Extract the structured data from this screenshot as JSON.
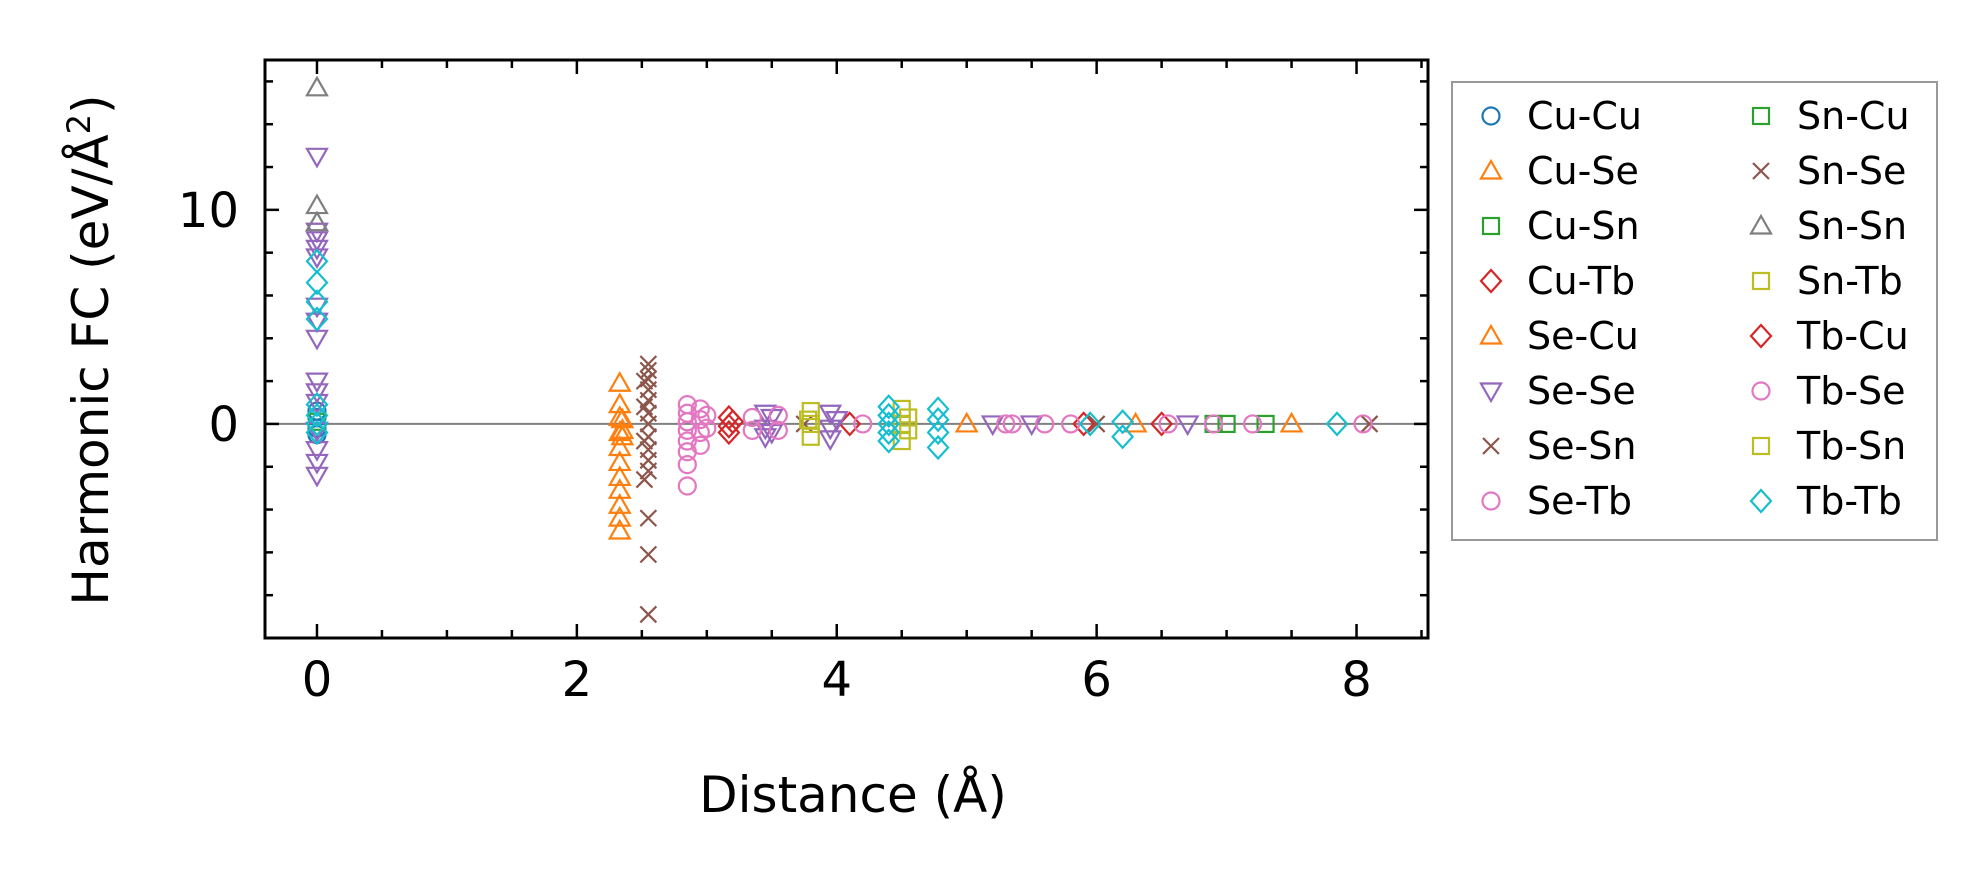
{
  "chart_data": {
    "type": "scatter",
    "xlabel": "Distance (Å)",
    "ylabel_main": "Harmonic FC (eV/Å",
    "ylabel_sup": "2",
    "ylabel_close": ")",
    "xlim": [
      -0.4,
      8.55
    ],
    "ylim": [
      -10.0,
      17.0
    ],
    "xticks": [
      0,
      2,
      4,
      6,
      8
    ],
    "xtick_labels": [
      "0",
      "2",
      "4",
      "6",
      "8"
    ],
    "yticks": [
      0,
      10
    ],
    "ytick_labels": [
      "0",
      "10"
    ],
    "x_minor_step": 0.5,
    "y_minor_step": 2,
    "zero_line": true,
    "grid": false,
    "legend_position": "outside-right",
    "legend_columns": 2,
    "series": [
      {
        "name": "Cu-Cu",
        "marker": "circle",
        "color": "#1f77b4",
        "points": [
          [
            0,
            0.3
          ],
          [
            0,
            -0.2
          ],
          [
            0,
            0.6
          ],
          [
            0,
            -0.5
          ]
        ]
      },
      {
        "name": "Cu-Se",
        "marker": "triangle-up",
        "color": "#ff7f0e",
        "points": [
          [
            2.33,
            1.9
          ],
          [
            2.33,
            0.9
          ],
          [
            2.33,
            0.3
          ],
          [
            2.33,
            -0.4
          ],
          [
            2.33,
            -1.1
          ],
          [
            2.33,
            -1.8
          ],
          [
            2.33,
            -2.5
          ],
          [
            2.33,
            -3.1
          ],
          [
            2.33,
            -3.8
          ],
          [
            2.33,
            -4.4
          ],
          [
            2.33,
            -5.0
          ],
          [
            5.0,
            0.0
          ],
          [
            6.3,
            0.0
          ],
          [
            7.5,
            0.0
          ]
        ]
      },
      {
        "name": "Cu-Sn",
        "marker": "square",
        "color": "#2ca02c",
        "points": [
          [
            0,
            0.1
          ],
          [
            6.9,
            0.0
          ],
          [
            7.3,
            0.0
          ]
        ]
      },
      {
        "name": "Cu-Tb",
        "marker": "diamond",
        "color": "#d62728",
        "points": [
          [
            3.17,
            0.3
          ],
          [
            3.17,
            -0.1
          ],
          [
            3.17,
            -0.4
          ],
          [
            4.1,
            0.0
          ],
          [
            5.9,
            0.0
          ]
        ]
      },
      {
        "name": "Se-Cu",
        "marker": "triangle-up",
        "color": "#ff7f0e",
        "points": [
          [
            2.35,
            0.2
          ],
          [
            2.35,
            -0.3
          ],
          [
            2.35,
            -0.6
          ]
        ]
      },
      {
        "name": "Se-Se",
        "marker": "triangle-down",
        "color": "#9467bd",
        "points": [
          [
            0,
            12.5
          ],
          [
            0,
            9.0
          ],
          [
            0,
            8.6
          ],
          [
            0,
            8.2
          ],
          [
            0,
            7.8
          ],
          [
            0,
            5.5
          ],
          [
            0,
            4.8
          ],
          [
            0,
            4.0
          ],
          [
            0,
            2.0
          ],
          [
            0,
            1.5
          ],
          [
            0,
            1.0
          ],
          [
            0,
            -0.3
          ],
          [
            0,
            -1.2
          ],
          [
            0,
            -1.8
          ],
          [
            0,
            -2.4
          ],
          [
            3.45,
            0.5
          ],
          [
            3.45,
            -0.2
          ],
          [
            3.45,
            -0.6
          ],
          [
            3.5,
            0.3
          ],
          [
            3.5,
            -0.4
          ],
          [
            3.95,
            0.5
          ],
          [
            3.95,
            -0.2
          ],
          [
            3.95,
            -0.7
          ],
          [
            4.0,
            0.2
          ],
          [
            5.2,
            0.0
          ],
          [
            5.5,
            0.0
          ],
          [
            6.7,
            0.0
          ]
        ]
      },
      {
        "name": "Se-Sn",
        "marker": "x",
        "color": "#8c564b",
        "points": [
          [
            2.55,
            2.8
          ],
          [
            2.55,
            2.5
          ],
          [
            2.55,
            2.1
          ],
          [
            2.55,
            1.6
          ],
          [
            2.55,
            1.1
          ],
          [
            2.55,
            0.5
          ],
          [
            2.55,
            0.0
          ],
          [
            2.55,
            -0.6
          ],
          [
            2.55,
            -1.2
          ],
          [
            2.55,
            -1.7
          ],
          [
            2.55,
            -2.2
          ],
          [
            2.55,
            -4.4
          ],
          [
            2.55,
            -6.1
          ],
          [
            2.55,
            -8.9
          ]
        ]
      },
      {
        "name": "Se-Tb",
        "marker": "circle",
        "color": "#e377c2",
        "points": [
          [
            2.85,
            0.9
          ],
          [
            2.85,
            0.5
          ],
          [
            2.85,
            0.1
          ],
          [
            2.85,
            -0.3
          ],
          [
            2.85,
            -0.8
          ],
          [
            2.85,
            -1.3
          ],
          [
            2.85,
            -1.9
          ],
          [
            2.85,
            -2.9
          ],
          [
            2.95,
            0.7
          ],
          [
            2.95,
            0.2
          ],
          [
            2.95,
            -0.4
          ],
          [
            2.95,
            -1.0
          ],
          [
            3.0,
            0.4
          ],
          [
            3.0,
            -0.2
          ],
          [
            3.55,
            0.4
          ],
          [
            3.55,
            -0.3
          ],
          [
            5.3,
            0.0
          ],
          [
            5.8,
            0.0
          ]
        ]
      },
      {
        "name": "Sn-Cu",
        "marker": "square",
        "color": "#2ca02c",
        "points": [
          [
            7.0,
            0.0
          ]
        ]
      },
      {
        "name": "Sn-Se",
        "marker": "x",
        "color": "#8c564b",
        "points": [
          [
            2.52,
            2.0
          ],
          [
            2.52,
            0.8
          ],
          [
            2.52,
            -0.8
          ],
          [
            2.52,
            -2.6
          ],
          [
            3.75,
            0.0
          ],
          [
            6.0,
            0.0
          ],
          [
            8.1,
            0.0
          ]
        ]
      },
      {
        "name": "Sn-Sn",
        "marker": "triangle-up",
        "color": "#7f7f7f",
        "points": [
          [
            0,
            15.7
          ],
          [
            0,
            10.2
          ],
          [
            0,
            9.4
          ]
        ]
      },
      {
        "name": "Sn-Tb",
        "marker": "square",
        "color": "#bcbd22",
        "points": [
          [
            3.8,
            0.6
          ],
          [
            3.8,
            0.0
          ],
          [
            3.8,
            -0.6
          ],
          [
            4.5,
            0.7
          ],
          [
            4.5,
            0.0
          ],
          [
            4.5,
            -0.8
          ]
        ]
      },
      {
        "name": "Tb-Cu",
        "marker": "diamond",
        "color": "#d62728",
        "points": [
          [
            3.2,
            0.1
          ],
          [
            6.5,
            0.0
          ]
        ]
      },
      {
        "name": "Tb-Se",
        "marker": "circle",
        "color": "#e377c2",
        "points": [
          [
            3.35,
            0.3
          ],
          [
            3.35,
            -0.3
          ],
          [
            4.2,
            0.0
          ],
          [
            5.35,
            0.0
          ],
          [
            5.6,
            0.0
          ],
          [
            6.55,
            0.0
          ],
          [
            6.9,
            0.0
          ],
          [
            7.2,
            0.0
          ],
          [
            8.05,
            0.0
          ]
        ]
      },
      {
        "name": "Tb-Sn",
        "marker": "square",
        "color": "#bcbd22",
        "points": [
          [
            3.78,
            0.2
          ],
          [
            4.55,
            0.3
          ],
          [
            4.55,
            -0.3
          ]
        ]
      },
      {
        "name": "Tb-Tb",
        "marker": "diamond",
        "color": "#17becf",
        "points": [
          [
            0,
            7.6
          ],
          [
            0,
            6.6
          ],
          [
            0,
            5.7
          ],
          [
            0,
            4.9
          ],
          [
            0,
            0.9
          ],
          [
            0,
            0.4
          ],
          [
            0,
            0.0
          ],
          [
            0,
            -0.4
          ],
          [
            4.4,
            0.8
          ],
          [
            4.4,
            0.4
          ],
          [
            4.4,
            0.0
          ],
          [
            4.4,
            -0.4
          ],
          [
            4.4,
            -0.8
          ],
          [
            4.78,
            0.7
          ],
          [
            4.78,
            0.2
          ],
          [
            4.78,
            -0.4
          ],
          [
            4.78,
            -1.1
          ],
          [
            5.95,
            0.0
          ],
          [
            6.2,
            0.1
          ],
          [
            6.2,
            -0.6
          ],
          [
            7.85,
            0.0
          ]
        ]
      }
    ]
  }
}
